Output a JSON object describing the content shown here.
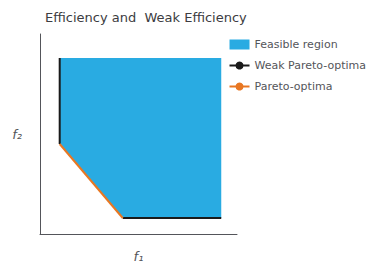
{
  "chart_data": {
    "type": "line",
    "title": "Efficiency and  Weak Efficiency",
    "xlabel": "f₁",
    "ylabel": "f₂",
    "series": [
      {
        "name": "Feasible region",
        "type": "polygon",
        "color": "#29ABE2",
        "x": [
          0.1,
          0.1,
          0.42,
          0.92,
          0.92
        ],
        "values": [
          0.88,
          0.45,
          0.08,
          0.08,
          0.88
        ]
      },
      {
        "name": "Weak Pareto-optima",
        "type": "line",
        "color": "#1a1a1a",
        "x": [
          0.1,
          0.1,
          0.42,
          0.42,
          0.92
        ],
        "values": [
          0.88,
          0.45,
          null,
          0.08,
          0.08
        ]
      },
      {
        "name": "Pareto-optima",
        "type": "line",
        "color": "#E87722",
        "x": [
          0.1,
          0.42
        ],
        "values": [
          0.45,
          0.08
        ]
      }
    ],
    "xlim": [
      0,
      1.0
    ],
    "ylim": [
      0,
      1.0
    ],
    "tick_labels": false,
    "grid": false,
    "legend": "right"
  }
}
